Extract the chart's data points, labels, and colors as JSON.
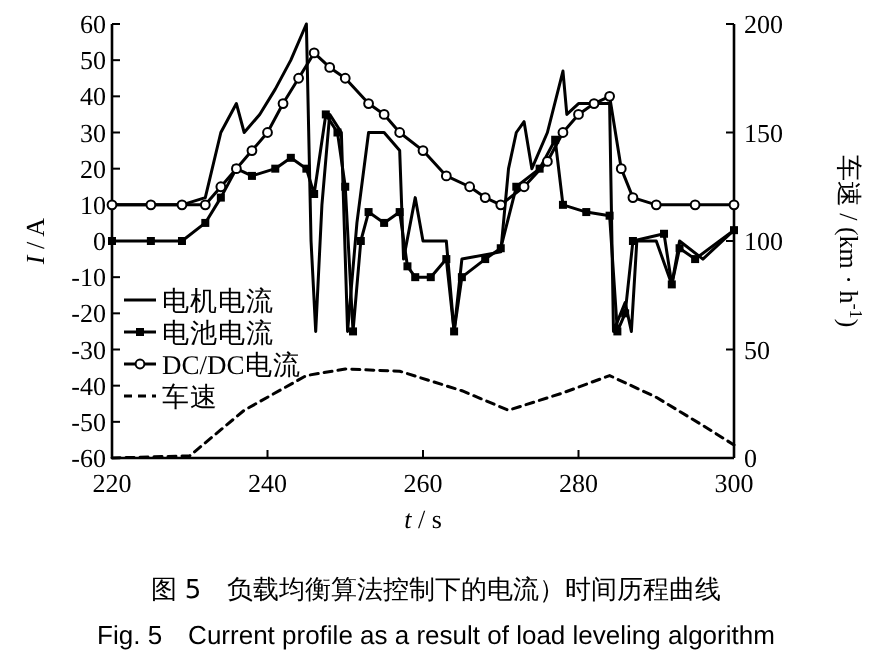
{
  "chart_data": {
    "type": "line",
    "title": "图 5　负载均衡算法控制下的电流）时间历程曲线",
    "subtitle": "Fig. 5　Current profile as a result of load leveling algorithm",
    "xlabel": "*t* / s",
    "ylabel": "*I* / A",
    "y2label": "车速 / (km · h$^{-1}$)",
    "xlim": [
      220,
      300
    ],
    "xticks": [
      220,
      240,
      260,
      280,
      300
    ],
    "ylim": [
      -60,
      60
    ],
    "yticks": [
      -60,
      -50,
      -40,
      -30,
      -20,
      -10,
      0,
      10,
      20,
      30,
      40,
      50,
      60
    ],
    "y2lim": [
      0,
      200
    ],
    "y2ticks": [
      0,
      50,
      100,
      150,
      200
    ],
    "legend": "bottom left",
    "grid": false,
    "series": [
      {
        "name": "电机电流",
        "color": "#000000",
        "marker": "none",
        "line_style": "solid",
        "x": [
          220,
          229,
          232,
          234,
          236,
          237,
          239,
          241,
          243,
          245,
          245.6,
          246.2,
          247,
          248,
          249.5,
          250.3,
          251.5,
          253,
          255,
          257,
          257.5,
          259,
          260,
          263,
          264,
          265,
          270,
          271,
          272,
          273,
          274,
          276,
          278,
          278.5,
          280,
          284,
          284.5,
          286,
          286.8,
          287.5,
          290,
          292,
          293,
          296,
          300
        ],
        "values": [
          10,
          10,
          12,
          30,
          38,
          30,
          35,
          42,
          50,
          60,
          0,
          -25,
          10,
          35,
          30,
          -25,
          5,
          30,
          30,
          25,
          -5,
          12,
          0,
          0,
          -25,
          -5,
          -3,
          20,
          30,
          33,
          20,
          30,
          47,
          35,
          38,
          38,
          -25,
          -17,
          -25,
          0,
          0,
          -12,
          0,
          -5,
          3
        ]
      },
      {
        "name": "电池电流",
        "color": "#000000",
        "marker": "square",
        "line_style": "solid",
        "x": [
          220,
          225,
          229,
          232,
          234,
          236,
          238,
          241,
          243,
          245,
          246,
          247.5,
          249,
          250,
          251,
          252,
          253,
          255,
          257,
          258,
          259,
          261,
          263,
          264,
          265,
          268,
          270,
          272,
          275,
          277,
          278,
          281,
          284,
          285,
          286,
          287,
          291,
          292,
          293,
          295,
          300
        ],
        "values": [
          0,
          0,
          0,
          5,
          12,
          20,
          18,
          20,
          23,
          20,
          13,
          35,
          30,
          15,
          -25,
          0,
          8,
          5,
          8,
          -7,
          -10,
          -10,
          -5,
          -25,
          -10,
          -5,
          -2,
          15,
          20,
          28,
          10,
          8,
          7,
          -25,
          -20,
          0,
          2,
          -12,
          -2,
          -5,
          3
        ]
      },
      {
        "name": "DC/DC电流",
        "color": "#000000",
        "marker": "circle",
        "line_style": "solid",
        "x": [
          220,
          225,
          229,
          232,
          234,
          236,
          238,
          240,
          242,
          244,
          246,
          248,
          250,
          253,
          255,
          257,
          260,
          263,
          266,
          268,
          270,
          273,
          276,
          278,
          280,
          282,
          284,
          285.5,
          287,
          290,
          295,
          300
        ],
        "values": [
          10,
          10,
          10,
          10,
          15,
          20,
          25,
          30,
          38,
          45,
          52,
          48,
          45,
          38,
          35,
          30,
          25,
          18,
          15,
          12,
          10,
          15,
          22,
          30,
          35,
          38,
          40,
          20,
          12,
          10,
          10,
          10
        ]
      },
      {
        "name": "车速",
        "color": "#000000",
        "marker": "none",
        "line_style": "dashed",
        "axis": "y2",
        "x": [
          220,
          230,
          237,
          245,
          250,
          257,
          265,
          271,
          278,
          284,
          290,
          296,
          300
        ],
        "values": [
          0,
          1,
          22,
          38,
          41,
          40,
          31,
          22,
          30,
          38,
          28,
          15,
          6
        ]
      }
    ]
  }
}
